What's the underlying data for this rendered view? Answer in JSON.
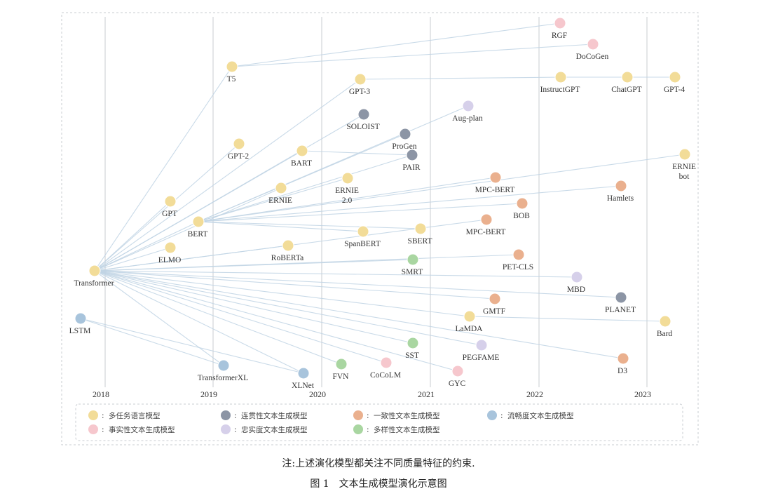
{
  "colors": {
    "multitask": "#f2dc98",
    "factual": "#f6c7cd",
    "coherence": "#8c95a5",
    "faithfulness": "#d6d0ea",
    "consistency": "#eab08e",
    "diversity": "#a9d6a1",
    "fluency": "#a8c4dc",
    "edge": "#bfd4e4",
    "grid": "#c9ccd2",
    "frame": "#c8ccd2"
  },
  "years": [
    "2018",
    "2019",
    "2020",
    "2021",
    "2022",
    "2023"
  ],
  "legend": [
    {
      "category": "multitask",
      "label": "多任务语言模型"
    },
    {
      "category": "coherence",
      "label": "连贯性文本生成模型"
    },
    {
      "category": "consistency",
      "label": "一致性文本生成模型"
    },
    {
      "category": "fluency",
      "label": "流畅度文本生成模型"
    },
    {
      "category": "factual",
      "label": "事实性文本生成模型"
    },
    {
      "category": "faithfulness",
      "label": "忠实度文本生成模型"
    },
    {
      "category": "diversity",
      "label": "多样性文本生成模型"
    }
  ],
  "nodes": [
    {
      "id": "Transformer",
      "label": "Transformer",
      "category": "multitask"
    },
    {
      "id": "LSTM",
      "label": "LSTM",
      "category": "fluency"
    },
    {
      "id": "GPT",
      "label": "GPT",
      "category": "multitask"
    },
    {
      "id": "BERT",
      "label": "BERT",
      "category": "multitask"
    },
    {
      "id": "ELMO",
      "label": "ELMO",
      "category": "multitask"
    },
    {
      "id": "T5",
      "label": "T5",
      "category": "multitask"
    },
    {
      "id": "GPT-2",
      "label": "GPT-2",
      "category": "multitask"
    },
    {
      "id": "BART",
      "label": "BART",
      "category": "multitask"
    },
    {
      "id": "ERNIE",
      "label": "ERNIE",
      "category": "multitask"
    },
    {
      "id": "RoBERTa",
      "label": "RoBERTa",
      "category": "multitask"
    },
    {
      "id": "TransformerXL",
      "label": "TransformerXL",
      "category": "fluency"
    },
    {
      "id": "GPT-3",
      "label": "GPT-3",
      "category": "multitask"
    },
    {
      "id": "SOLOIST",
      "label": "SOLOIST",
      "category": "coherence"
    },
    {
      "id": "ERNIE 2.0",
      "label": "ERNIE 2.0",
      "category": "multitask"
    },
    {
      "id": "SpanBERT",
      "label": "SpanBERT",
      "category": "multitask"
    },
    {
      "id": "XLNet",
      "label": "XLNet",
      "category": "fluency"
    },
    {
      "id": "FVN",
      "label": "FVN",
      "category": "diversity"
    },
    {
      "id": "CoCoLM",
      "label": "CoCoLM",
      "category": "factual"
    },
    {
      "id": "ProGen",
      "label": "ProGen",
      "category": "coherence"
    },
    {
      "id": "PAIR",
      "label": "PAIR",
      "category": "coherence"
    },
    {
      "id": "SBERT",
      "label": "SBERT",
      "category": "multitask"
    },
    {
      "id": "SMRT",
      "label": "SMRT",
      "category": "diversity"
    },
    {
      "id": "SST",
      "label": "SST",
      "category": "diversity"
    },
    {
      "id": "GYC",
      "label": "GYC",
      "category": "factual"
    },
    {
      "id": "Aug-plan",
      "label": "Aug-plan",
      "category": "faithfulness"
    },
    {
      "id": "LaMDA",
      "label": "LaMDA",
      "category": "multitask"
    },
    {
      "id": "PEGFAME",
      "label": "PEGFAME",
      "category": "faithfulness"
    },
    {
      "id": "MPC-BERT (1)",
      "label": "MPC-BERT",
      "category": "consistency"
    },
    {
      "id": "MPC-BERT (2)",
      "label": "MPC-BERT",
      "category": "consistency"
    },
    {
      "id": "GMTF",
      "label": "GMTF",
      "category": "consistency"
    },
    {
      "id": "BOB",
      "label": "BOB",
      "category": "consistency"
    },
    {
      "id": "PET-CLS",
      "label": "PET-CLS",
      "category": "consistency"
    },
    {
      "id": "InstructGPT",
      "label": "InstructGPT",
      "category": "multitask"
    },
    {
      "id": "RGF",
      "label": "RGF",
      "category": "factual"
    },
    {
      "id": "DoCoGen",
      "label": "DoCoGen",
      "category": "factual"
    },
    {
      "id": "MBD",
      "label": "MBD",
      "category": "faithfulness"
    },
    {
      "id": "Hamlets",
      "label": "Hamlets",
      "category": "consistency"
    },
    {
      "id": "ChatGPT",
      "label": "ChatGPT",
      "category": "multitask"
    },
    {
      "id": "PLANET",
      "label": "PLANET",
      "category": "coherence"
    },
    {
      "id": "D3",
      "label": "D3",
      "category": "consistency"
    },
    {
      "id": "GPT-4",
      "label": "GPT-4",
      "category": "multitask"
    },
    {
      "id": "ERNIE bot",
      "label": "ERNIE bot",
      "category": "multitask"
    },
    {
      "id": "Bard",
      "label": "Bard",
      "category": "multitask"
    }
  ],
  "edges": [
    [
      "Transformer",
      "GPT"
    ],
    [
      "Transformer",
      "BERT"
    ],
    [
      "Transformer",
      "ELMO"
    ],
    [
      "Transformer",
      "T5"
    ],
    [
      "Transformer",
      "GPT-2"
    ],
    [
      "Transformer",
      "BART"
    ],
    [
      "Transformer",
      "ERNIE"
    ],
    [
      "Transformer",
      "RoBERTa"
    ],
    [
      "Transformer",
      "TransformerXL"
    ],
    [
      "Transformer",
      "GPT-3"
    ],
    [
      "Transformer",
      "SOLOIST"
    ],
    [
      "Transformer",
      "XLNet"
    ],
    [
      "Transformer",
      "FVN"
    ],
    [
      "Transformer",
      "CoCoLM"
    ],
    [
      "Transformer",
      "SMRT"
    ],
    [
      "Transformer",
      "SST"
    ],
    [
      "Transformer",
      "GYC"
    ],
    [
      "Transformer",
      "LaMDA"
    ],
    [
      "Transformer",
      "PEGFAME"
    ],
    [
      "Transformer",
      "GMTF"
    ],
    [
      "Transformer",
      "PET-CLS"
    ],
    [
      "Transformer",
      "MBD"
    ],
    [
      "Transformer",
      "PLANET"
    ],
    [
      "Transformer",
      "D3"
    ],
    [
      "Transformer",
      "MPC-BERT (2)"
    ],
    [
      "LSTM",
      "TransformerXL"
    ],
    [
      "LSTM",
      "XLNet"
    ],
    [
      "BERT",
      "ERNIE 2.0"
    ],
    [
      "BERT",
      "SpanBERT"
    ],
    [
      "BERT",
      "SBERT"
    ],
    [
      "BERT",
      "MPC-BERT (1)"
    ],
    [
      "BERT",
      "BOB"
    ],
    [
      "BERT",
      "Hamlets"
    ],
    [
      "BERT",
      "ERNIE bot"
    ],
    [
      "BERT",
      "ProGen"
    ],
    [
      "BERT",
      "PAIR"
    ],
    [
      "BERT",
      "Aug-plan"
    ],
    [
      "T5",
      "RGF"
    ],
    [
      "T5",
      "DoCoGen"
    ],
    [
      "GPT-3",
      "InstructGPT"
    ],
    [
      "InstructGPT",
      "ChatGPT"
    ],
    [
      "ChatGPT",
      "GPT-4"
    ],
    [
      "BART",
      "PAIR"
    ],
    [
      "LaMDA",
      "Bard"
    ]
  ],
  "caption": {
    "note": "注:上述演化模型都关注不同质量特征的约束.",
    "title": "图 1　文本生成模型演化示意图"
  }
}
